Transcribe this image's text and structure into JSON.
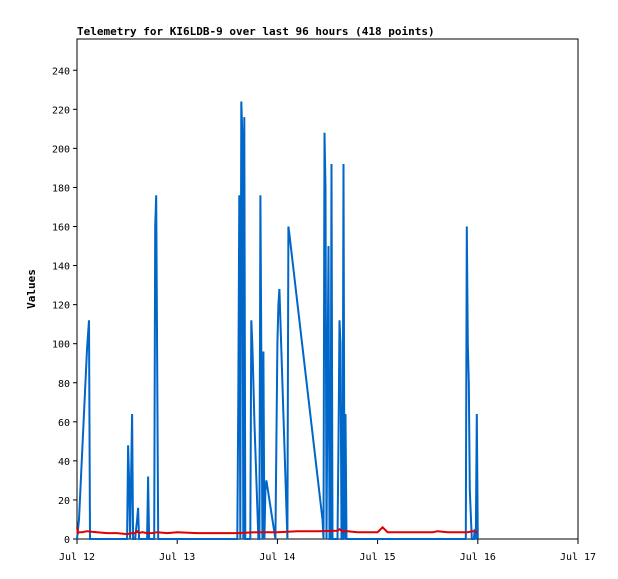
{
  "chart_data": {
    "type": "line",
    "title": "Telemetry for KI6LDB-9 over last 96 hours (418 points)",
    "xlabel": "",
    "ylabel": "Values",
    "x_axis": {
      "type": "time",
      "range": [
        "Jul 12",
        "Jul 17"
      ],
      "ticks": [
        "Jul 12",
        "Jul 13",
        "Jul 14",
        "Jul 15",
        "Jul 16",
        "Jul 17"
      ]
    },
    "ylim": [
      0,
      256
    ],
    "yticks": [
      0,
      20,
      40,
      60,
      80,
      100,
      120,
      140,
      160,
      180,
      200,
      220,
      240
    ],
    "grid": false,
    "legend": "none",
    "colors": {
      "blue_series": "#0066c8",
      "red_series": "#e00000",
      "axis": "#000000",
      "background": "#ffffff"
    },
    "series": [
      {
        "color": "blue",
        "x": [
          0.0,
          0.02,
          0.1,
          0.12,
          0.13,
          0.14,
          0.15,
          0.16,
          0.5,
          0.51,
          0.52,
          0.53,
          0.55,
          0.56,
          0.57,
          0.58,
          0.59,
          0.6,
          0.61,
          0.62,
          0.63,
          0.7,
          0.71,
          0.72,
          0.77,
          0.78,
          0.79,
          0.8,
          0.81,
          0.82,
          1.6,
          1.61,
          1.62,
          1.63,
          1.64,
          1.65,
          1.66,
          1.67,
          1.68,
          1.69,
          1.7,
          1.73,
          1.74,
          1.75,
          1.76,
          1.77,
          1.81,
          1.82,
          1.83,
          1.84,
          1.85,
          1.86,
          1.87,
          1.88,
          1.89,
          1.98,
          1.99,
          2.0,
          2.01,
          2.02,
          2.1,
          2.11,
          2.12,
          2.45,
          2.46,
          2.47,
          2.48,
          2.49,
          2.5,
          2.51,
          2.52,
          2.53,
          2.54,
          2.55,
          2.56,
          2.57,
          2.58,
          2.6,
          2.61,
          2.62,
          2.63,
          2.64,
          2.65,
          2.66,
          2.67,
          2.68,
          2.69,
          2.7,
          2.71,
          3.88,
          3.89,
          3.9,
          3.91,
          3.92,
          3.94,
          3.96,
          3.97,
          3.98,
          3.99,
          4.0
        ],
        "y": [
          0,
          10,
          97,
          112,
          0,
          0,
          0,
          0,
          0,
          48,
          30,
          0,
          64,
          0,
          0,
          0,
          5,
          10,
          16,
          0,
          0,
          0,
          32,
          0,
          0,
          160,
          176,
          88,
          0,
          0,
          0,
          72,
          176,
          0,
          224,
          208,
          0,
          216,
          0,
          0,
          0,
          0,
          112,
          100,
          80,
          60,
          0,
          0,
          176,
          88,
          0,
          96,
          0,
          25,
          30,
          0,
          50,
          100,
          120,
          128,
          0,
          160,
          156,
          10,
          0,
          208,
          180,
          0,
          80,
          150,
          0,
          0,
          192,
          0,
          0,
          0,
          0,
          0,
          50,
          112,
          100,
          0,
          0,
          192,
          0,
          64,
          0,
          0,
          0,
          0,
          160,
          100,
          80,
          25,
          0,
          0,
          5,
          0,
          64,
          0
        ]
      },
      {
        "color": "red",
        "x": [
          0.0,
          0.01,
          0.02,
          0.05,
          0.1,
          0.2,
          0.3,
          0.4,
          0.5,
          0.55,
          0.58,
          0.6,
          0.62,
          0.65,
          0.7,
          0.75,
          0.8,
          0.9,
          1.0,
          1.2,
          1.4,
          1.6,
          1.8,
          2.0,
          2.2,
          2.4,
          2.6,
          2.62,
          2.65,
          2.7,
          2.8,
          3.0,
          3.05,
          3.1,
          3.2,
          3.4,
          3.55,
          3.6,
          3.7,
          3.8,
          3.9,
          3.95,
          4.0
        ],
        "y": [
          6,
          3,
          3.5,
          3.5,
          4,
          3.5,
          3,
          3,
          2.5,
          3,
          3,
          4,
          3,
          3.5,
          3,
          3,
          3.5,
          3,
          3.5,
          3,
          3,
          3,
          3.5,
          3.5,
          4,
          4,
          4.2,
          5,
          4,
          4,
          3.5,
          3.5,
          6,
          3.5,
          3.5,
          3.5,
          3.5,
          4,
          3.5,
          3.5,
          3.5,
          4,
          3.5
        ]
      }
    ]
  }
}
